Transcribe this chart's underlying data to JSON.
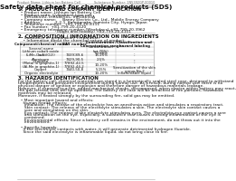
{
  "header_left": "Product Name: Lithium Ion Battery Cell",
  "header_right": "Substance Number: 1N5392GP-00010\nEstablishment / Revision: Dec.1.2010",
  "title": "Safety data sheet for chemical products (SDS)",
  "section1_title": "1. PRODUCT AND COMPANY IDENTIFICATION",
  "section1_lines": [
    "  • Product name: Lithium Ion Battery Cell",
    "  • Product code: Cylindrical-type cell",
    "     IHR18650U, IHR18650L, IHR18650A",
    "  • Company name:     Banny Electric Co., Ltd., Mobile Energy Company",
    "  • Address:           2-2-1  Kamitanaka, Sumioto City, Hyogo, Japan",
    "  • Telephone number:  +81-799-20-4111",
    "  • Fax number:  +81-799-20-4120",
    "  • Emergency telephone number (Weekdays) +81-799-20-3962",
    "                               (Night and holiday) +81-799-20-4101"
  ],
  "section2_title": "2. COMPOSITION / INFORMATION ON INGREDIENTS",
  "section2_intro": "  • Substance or preparation: Preparation",
  "section2_sub": "    • Information about the chemical nature of product:",
  "table_headers": [
    "Component/chemical name",
    "CAS number",
    "Concentration /\nConcentration range",
    "Classification and\nhazard labeling"
  ],
  "section3_title": "3. HAZARDS IDENTIFICATION",
  "section3_body": [
    "For the battery cell, chemical materials are stored in a hermetically sealed steel case, designed to withstand",
    "temperatures and pressures encountered during normal use. As a result, during normal use, there is no",
    "physical danger of ignition or explosion and therefore danger of hazardous materials leakage.",
    "However, if exposed to a fire, added mechanical shocks, decomposed, when electro within battery may react,",
    "the gas release vent will be operated. The battery cell case will be breached of fire-portions, hazardous",
    "materials may be released.",
    "Moreover, if heated strongly by the surrounding fire, solid gas may be emitted.",
    "",
    "  • Most important hazard and effects:",
    "    Human health effects:",
    "     Inhalation: The release of the electrolyte has an anesthesia action and stimulates a respiratory tract.",
    "     Skin contact: The release of the electrolyte stimulates a skin. The electrolyte skin contact causes a",
    "     sore and stimulation on the skin.",
    "     Eye contact: The release of the electrolyte stimulates eyes. The electrolyte eye contact causes a sore",
    "     and stimulation on the eye. Especially, a substance that causes a strong inflammation of the eye is",
    "     contained.",
    "     Environmental effects: Since a battery cell remains in the environment, do not throw out it into the",
    "     environment.",
    "",
    "  • Specific hazards:",
    "    If the electrolyte contacts with water, it will generate detrimental hydrogen fluoride.",
    "    Since the said electrolyte is inflammable liquid, do not bring close to fire."
  ],
  "bg_color": "#ffffff",
  "text_color": "#111111",
  "gray_color": "#666666",
  "border_color": "#aaaaaa"
}
